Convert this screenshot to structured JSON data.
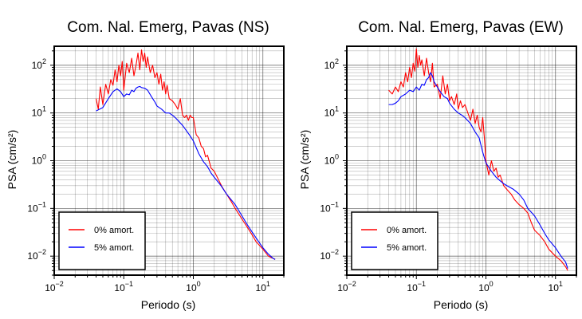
{
  "chart_data": [
    {
      "type": "line",
      "title": "Com. Nal. Emerg, Pavas (NS)",
      "xlabel": "Periodo (s)",
      "ylabel": "PSA (cm/s²)",
      "xscale": "log",
      "yscale": "log",
      "xlim": [
        0.01,
        20
      ],
      "ylim": [
        0.004,
        250
      ],
      "grid": true,
      "legend_position": "bottom-left",
      "xticks": [
        {
          "base": "10",
          "exp": "−2"
        },
        {
          "base": "10",
          "exp": "−1"
        },
        {
          "base": "10",
          "exp": "0"
        },
        {
          "base": "10",
          "exp": "1"
        }
      ],
      "yticks": [
        {
          "base": "10",
          "exp": "−2"
        },
        {
          "base": "10",
          "exp": "−1"
        },
        {
          "base": "10",
          "exp": "0"
        },
        {
          "base": "10",
          "exp": "1"
        },
        {
          "base": "10",
          "exp": "2"
        }
      ],
      "series": [
        {
          "name": "0% amort.",
          "color": "#ff0000",
          "x": [
            0.04,
            0.043,
            0.046,
            0.05,
            0.055,
            0.06,
            0.065,
            0.07,
            0.075,
            0.08,
            0.085,
            0.09,
            0.095,
            0.1,
            0.11,
            0.12,
            0.13,
            0.14,
            0.15,
            0.16,
            0.17,
            0.18,
            0.19,
            0.2,
            0.21,
            0.22,
            0.24,
            0.26,
            0.28,
            0.3,
            0.32,
            0.34,
            0.36,
            0.38,
            0.4,
            0.42,
            0.45,
            0.5,
            0.55,
            0.6,
            0.65,
            0.7,
            0.75,
            0.8,
            0.85,
            0.9,
            0.95,
            1.0,
            1.1,
            1.2,
            1.3,
            1.4,
            1.5,
            1.6,
            1.8,
            2.0,
            2.3,
            2.6,
            3.0,
            3.5,
            4.0,
            5.0,
            6.0,
            7.0,
            8.0,
            10.0,
            12.0,
            14.0,
            15.0
          ],
          "y": [
            20,
            12,
            35,
            15,
            40,
            25,
            50,
            38,
            80,
            45,
            100,
            60,
            120,
            30,
            110,
            70,
            140,
            60,
            100,
            180,
            80,
            210,
            120,
            180,
            90,
            150,
            70,
            100,
            55,
            70,
            40,
            65,
            30,
            45,
            25,
            38,
            20,
            18,
            15,
            12,
            20,
            9,
            8,
            9,
            7,
            9,
            8,
            8,
            3.5,
            3.0,
            2.0,
            1.8,
            1.2,
            1.3,
            0.7,
            0.6,
            0.4,
            0.28,
            0.2,
            0.14,
            0.1,
            0.06,
            0.04,
            0.028,
            0.02,
            0.014,
            0.01,
            0.009,
            0.0085
          ]
        },
        {
          "name": "5% amort.",
          "color": "#0000ff",
          "x": [
            0.04,
            0.045,
            0.05,
            0.06,
            0.07,
            0.08,
            0.09,
            0.1,
            0.11,
            0.12,
            0.13,
            0.14,
            0.15,
            0.16,
            0.17,
            0.18,
            0.2,
            0.22,
            0.25,
            0.28,
            0.3,
            0.35,
            0.4,
            0.45,
            0.5,
            0.55,
            0.6,
            0.7,
            0.8,
            0.9,
            1.0,
            1.2,
            1.4,
            1.6,
            1.8,
            2.0,
            2.5,
            3.0,
            4.0,
            5.0,
            6.0,
            7.0,
            8.0,
            10.0,
            12.0,
            14.0,
            15.0
          ],
          "y": [
            11,
            12,
            13,
            20,
            28,
            32,
            28,
            22,
            25,
            24,
            30,
            28,
            33,
            35,
            36,
            34,
            33,
            30,
            22,
            17,
            14,
            12,
            10,
            10,
            9,
            8,
            7,
            5.5,
            4.2,
            3.3,
            2.6,
            1.4,
            0.95,
            0.75,
            0.55,
            0.45,
            0.3,
            0.2,
            0.12,
            0.07,
            0.045,
            0.032,
            0.024,
            0.015,
            0.011,
            0.009,
            0.0085
          ]
        }
      ]
    },
    {
      "type": "line",
      "title": "Com. Nal. Emerg, Pavas (EW)",
      "xlabel": "Periodo (s)",
      "ylabel": "PSA (cm/s²)",
      "xscale": "log",
      "yscale": "log",
      "xlim": [
        0.01,
        20
      ],
      "ylim": [
        0.004,
        250
      ],
      "grid": true,
      "legend_position": "bottom-left",
      "xticks": [
        {
          "base": "10",
          "exp": "−2"
        },
        {
          "base": "10",
          "exp": "−1"
        },
        {
          "base": "10",
          "exp": "0"
        },
        {
          "base": "10",
          "exp": "1"
        }
      ],
      "yticks": [
        {
          "base": "10",
          "exp": "−2"
        },
        {
          "base": "10",
          "exp": "−1"
        },
        {
          "base": "10",
          "exp": "0"
        },
        {
          "base": "10",
          "exp": "1"
        },
        {
          "base": "10",
          "exp": "2"
        }
      ],
      "series": [
        {
          "name": "0% amort.",
          "color": "#ff0000",
          "x": [
            0.04,
            0.045,
            0.05,
            0.055,
            0.06,
            0.065,
            0.07,
            0.075,
            0.08,
            0.085,
            0.09,
            0.095,
            0.1,
            0.105,
            0.11,
            0.115,
            0.12,
            0.13,
            0.14,
            0.15,
            0.16,
            0.17,
            0.18,
            0.2,
            0.22,
            0.24,
            0.26,
            0.28,
            0.3,
            0.32,
            0.35,
            0.38,
            0.4,
            0.43,
            0.46,
            0.5,
            0.55,
            0.6,
            0.65,
            0.7,
            0.75,
            0.8,
            0.85,
            0.9,
            0.95,
            1.0,
            1.1,
            1.2,
            1.3,
            1.4,
            1.5,
            1.6,
            1.8,
            2.0,
            2.3,
            2.6,
            3.0,
            3.5,
            4.0,
            4.5,
            5.0,
            6.0,
            7.0,
            8.0,
            10.0,
            12.0,
            14.0,
            15.0
          ],
          "y": [
            30,
            25,
            35,
            28,
            45,
            35,
            70,
            45,
            90,
            55,
            110,
            75,
            220,
            90,
            160,
            100,
            130,
            60,
            140,
            70,
            45,
            110,
            35,
            40,
            20,
            60,
            25,
            40,
            18,
            22,
            15,
            25,
            12,
            18,
            13,
            15,
            10,
            7,
            12,
            6,
            9,
            5,
            4,
            8,
            3.0,
            1.0,
            0.5,
            1.0,
            0.6,
            0.7,
            0.45,
            0.5,
            0.3,
            0.25,
            0.2,
            0.15,
            0.12,
            0.1,
            0.08,
            0.05,
            0.035,
            0.027,
            0.02,
            0.014,
            0.01,
            0.008,
            0.006,
            0.005
          ]
        },
        {
          "name": "5% amort.",
          "color": "#0000ff",
          "x": [
            0.04,
            0.045,
            0.05,
            0.055,
            0.06,
            0.07,
            0.08,
            0.09,
            0.1,
            0.11,
            0.12,
            0.13,
            0.14,
            0.15,
            0.16,
            0.17,
            0.18,
            0.2,
            0.22,
            0.25,
            0.28,
            0.3,
            0.35,
            0.4,
            0.45,
            0.5,
            0.6,
            0.7,
            0.8,
            0.9,
            1.0,
            1.2,
            1.4,
            1.6,
            1.8,
            2.0,
            2.5,
            3.0,
            3.5,
            4.0,
            5.0,
            6.0,
            7.0,
            8.0,
            10.0,
            12.0,
            14.0,
            15.0
          ],
          "y": [
            15,
            15,
            16,
            18,
            22,
            25,
            30,
            28,
            35,
            30,
            40,
            38,
            50,
            55,
            70,
            60,
            45,
            35,
            28,
            22,
            20,
            16,
            12,
            10,
            9,
            8,
            6,
            4,
            3,
            1.5,
            0.9,
            0.6,
            0.45,
            0.38,
            0.33,
            0.3,
            0.25,
            0.2,
            0.15,
            0.1,
            0.07,
            0.045,
            0.03,
            0.022,
            0.015,
            0.01,
            0.0075,
            0.0055
          ]
        }
      ]
    }
  ]
}
